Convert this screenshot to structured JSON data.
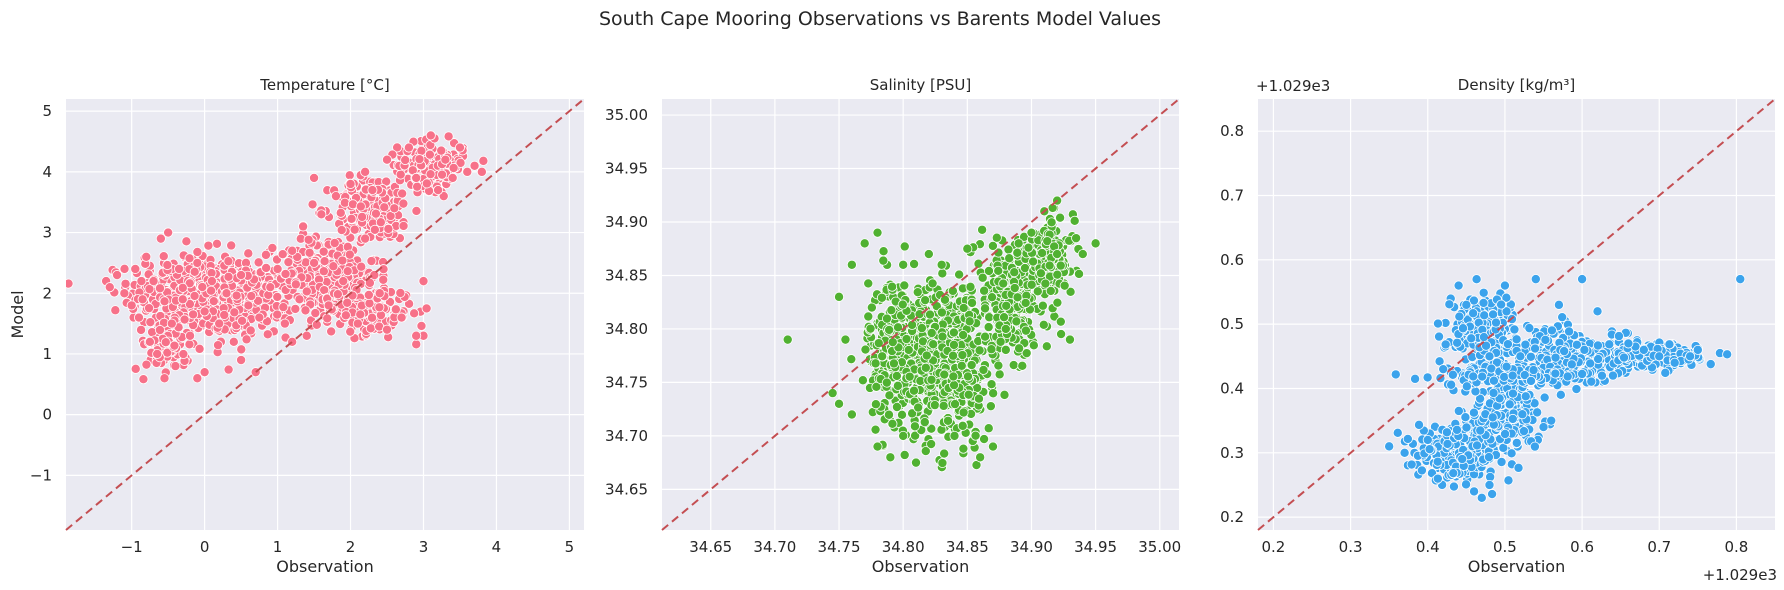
{
  "suptitle": "South Cape Mooring Observations vs Barents Model Values",
  "chart_data": [
    {
      "type": "scatter",
      "title": "Temperature [°C]",
      "xlabel": "Observation",
      "ylabel": "Model",
      "xlim": [
        -1.9,
        5.2
      ],
      "ylim": [
        -1.9,
        5.2
      ],
      "xticks": [
        "−1",
        "0",
        "1",
        "2",
        "3",
        "4",
        "5"
      ],
      "xtick_values": [
        -1,
        0,
        1,
        2,
        3,
        4,
        5
      ],
      "yticks": [
        "−1",
        "0",
        "1",
        "2",
        "3",
        "4",
        "5"
      ],
      "ytick_values": [
        -1,
        0,
        1,
        2,
        3,
        4,
        5
      ],
      "offset_x": "",
      "offset_y": "",
      "color": "#f77189",
      "identity_line": true,
      "points": [
        [
          -1.35,
          2.2
        ],
        [
          -1.3,
          2.1
        ],
        [
          -1.2,
          2.3
        ],
        [
          -1.1,
          2.0
        ],
        [
          -1.0,
          1.8
        ],
        [
          -0.95,
          2.4
        ],
        [
          -0.9,
          1.6
        ],
        [
          -0.85,
          1.9
        ],
        [
          -0.8,
          2.6
        ],
        [
          -0.75,
          1.2
        ],
        [
          -0.7,
          2.2
        ],
        [
          -0.65,
          1.0
        ],
        [
          -0.6,
          2.9
        ],
        [
          -0.55,
          0.6
        ],
        [
          -0.5,
          3.0
        ],
        [
          -0.45,
          1.5
        ],
        [
          -0.4,
          0.8
        ],
        [
          -0.35,
          2.4
        ],
        [
          -0.3,
          1.9
        ],
        [
          -0.2,
          1.3
        ],
        [
          -0.1,
          2.5
        ],
        [
          0.0,
          1.7
        ],
        [
          0.0,
          0.7
        ],
        [
          0.1,
          2.2
        ],
        [
          0.2,
          1.5
        ],
        [
          0.3,
          2.0
        ],
        [
          0.4,
          1.2
        ],
        [
          0.5,
          2.3
        ],
        [
          0.6,
          1.8
        ],
        [
          0.7,
          0.7
        ],
        [
          0.75,
          1.6
        ],
        [
          0.9,
          2.1
        ],
        [
          1.0,
          2.4
        ],
        [
          1.1,
          1.5
        ],
        [
          1.2,
          2.7
        ],
        [
          1.3,
          1.9
        ],
        [
          1.35,
          3.1
        ],
        [
          1.4,
          1.3
        ],
        [
          1.5,
          2.5
        ],
        [
          1.6,
          3.3
        ],
        [
          1.7,
          1.8
        ],
        [
          1.8,
          3.6
        ],
        [
          1.9,
          2.2
        ],
        [
          2.0,
          3.8
        ],
        [
          2.1,
          1.5
        ],
        [
          2.2,
          2.9
        ],
        [
          2.3,
          3.7
        ],
        [
          2.4,
          2.0
        ],
        [
          2.5,
          4.2
        ],
        [
          2.6,
          3.4
        ],
        [
          2.7,
          1.6
        ],
        [
          2.8,
          4.4
        ],
        [
          2.9,
          3.9
        ],
        [
          3.0,
          1.3
        ],
        [
          3.0,
          2.2
        ],
        [
          3.1,
          4.6
        ],
        [
          3.2,
          3.7
        ],
        [
          3.3,
          4.2
        ],
        [
          3.4,
          3.9
        ],
        [
          3.5,
          4.4
        ],
        [
          3.6,
          4.0
        ],
        [
          3.7,
          4.1
        ],
        [
          3.8,
          4.0
        ],
        [
          2.2,
          4.0
        ],
        [
          1.5,
          3.9
        ],
        [
          1.2,
          1.2
        ],
        [
          0.5,
          0.9
        ],
        [
          -0.1,
          0.6
        ],
        [
          2.5,
          1.4
        ],
        [
          2.9,
          1.3
        ]
      ],
      "clusters": [
        {
          "cx": -0.2,
          "cy": 2.0,
          "sx": 0.55,
          "sy": 0.45,
          "n": 420
        },
        {
          "cx": 0.5,
          "cy": 1.9,
          "sx": 0.45,
          "sy": 0.4,
          "n": 260
        },
        {
          "cx": 1.7,
          "cy": 2.3,
          "sx": 0.45,
          "sy": 0.45,
          "n": 280
        },
        {
          "cx": 2.3,
          "cy": 3.4,
          "sx": 0.35,
          "sy": 0.35,
          "n": 200
        },
        {
          "cx": 3.1,
          "cy": 4.1,
          "sx": 0.3,
          "sy": 0.25,
          "n": 180
        },
        {
          "cx": 2.2,
          "cy": 1.7,
          "sx": 0.45,
          "sy": 0.25,
          "n": 150
        },
        {
          "cx": -0.5,
          "cy": 1.1,
          "sx": 0.2,
          "sy": 0.25,
          "n": 80
        }
      ]
    },
    {
      "type": "scatter",
      "title": "Salinity [PSU]",
      "xlabel": "Observation",
      "ylabel": "",
      "xlim": [
        34.612,
        35.015
      ],
      "ylim": [
        34.612,
        35.015
      ],
      "xticks": [
        "34.65",
        "34.70",
        "34.75",
        "34.80",
        "34.85",
        "34.90",
        "34.95",
        "35.00"
      ],
      "xtick_values": [
        34.65,
        34.7,
        34.75,
        34.8,
        34.85,
        34.9,
        34.95,
        35.0
      ],
      "yticks": [
        "34.65",
        "34.70",
        "34.75",
        "34.80",
        "34.85",
        "34.90",
        "34.95",
        "35.00"
      ],
      "ytick_values": [
        34.65,
        34.7,
        34.75,
        34.8,
        34.85,
        34.9,
        34.95,
        35.0
      ],
      "offset_x": "",
      "offset_y": "",
      "color": "#50b131",
      "identity_line": true,
      "points": [
        [
          34.71,
          34.79
        ],
        [
          34.745,
          34.74
        ],
        [
          34.75,
          34.73
        ],
        [
          34.76,
          34.72
        ],
        [
          34.76,
          34.86
        ],
        [
          34.77,
          34.88
        ],
        [
          34.78,
          34.89
        ],
        [
          34.78,
          34.69
        ],
        [
          34.79,
          34.68
        ],
        [
          34.8,
          34.86
        ],
        [
          34.81,
          34.675
        ],
        [
          34.82,
          34.87
        ],
        [
          34.83,
          34.86
        ],
        [
          34.84,
          34.7
        ],
        [
          34.85,
          34.875
        ],
        [
          34.86,
          34.68
        ],
        [
          34.87,
          34.69
        ],
        [
          34.88,
          34.8
        ],
        [
          34.89,
          34.88
        ],
        [
          34.9,
          34.89
        ],
        [
          34.91,
          34.91
        ],
        [
          34.92,
          34.92
        ],
        [
          34.92,
          34.87
        ],
        [
          34.93,
          34.79
        ],
        [
          34.94,
          34.87
        ],
        [
          34.95,
          34.88
        ],
        [
          34.75,
          34.83
        ],
        [
          34.755,
          34.79
        ],
        [
          34.8,
          34.7
        ]
      ],
      "clusters": [
        {
          "cx": 34.8,
          "cy": 34.78,
          "sx": 0.018,
          "sy": 0.045,
          "n": 420
        },
        {
          "cx": 34.84,
          "cy": 34.77,
          "sx": 0.02,
          "sy": 0.05,
          "n": 380
        },
        {
          "cx": 34.885,
          "cy": 34.83,
          "sx": 0.02,
          "sy": 0.035,
          "n": 280
        },
        {
          "cx": 34.915,
          "cy": 34.865,
          "sx": 0.012,
          "sy": 0.025,
          "n": 150
        }
      ]
    },
    {
      "type": "scatter",
      "title": "Density [kg/m³]",
      "xlabel": "Observation",
      "ylabel": "",
      "xlim": [
        1029.18,
        1029.85
      ],
      "ylim": [
        1029.18,
        1029.85
      ],
      "xticks": [
        "0.2",
        "0.3",
        "0.4",
        "0.5",
        "0.6",
        "0.7",
        "0.8"
      ],
      "xtick_values": [
        1029.2,
        1029.3,
        1029.4,
        1029.5,
        1029.6,
        1029.7,
        1029.8
      ],
      "yticks": [
        "0.2",
        "0.3",
        "0.4",
        "0.5",
        "0.6",
        "0.7",
        "0.8"
      ],
      "ytick_values": [
        1029.2,
        1029.3,
        1029.4,
        1029.5,
        1029.6,
        1029.7,
        1029.8
      ],
      "offset_x": "+1.029e3",
      "offset_y": "+1.029e3",
      "color": "#3ba3ec",
      "identity_line": true,
      "points": [
        [
          1029.35,
          1029.31
        ],
        [
          1029.37,
          1029.3
        ],
        [
          1029.4,
          1029.32
        ],
        [
          1029.42,
          1029.43
        ],
        [
          1029.44,
          1029.56
        ],
        [
          1029.45,
          1029.53
        ],
        [
          1029.46,
          1029.24
        ],
        [
          1029.47,
          1029.23
        ],
        [
          1029.48,
          1029.25
        ],
        [
          1029.5,
          1029.56
        ],
        [
          1029.52,
          1029.45
        ],
        [
          1029.54,
          1029.57
        ],
        [
          1029.55,
          1029.34
        ],
        [
          1029.56,
          1029.35
        ],
        [
          1029.57,
          1029.53
        ],
        [
          1029.6,
          1029.57
        ],
        [
          1029.62,
          1029.52
        ],
        [
          1029.64,
          1029.42
        ],
        [
          1029.66,
          1029.47
        ],
        [
          1029.68,
          1029.46
        ],
        [
          1029.7,
          1029.45
        ],
        [
          1029.72,
          1029.44
        ],
        [
          1029.74,
          1029.45
        ],
        [
          1029.75,
          1029.46
        ],
        [
          1029.805,
          1029.57
        ],
        [
          1029.48,
          1029.45
        ],
        [
          1029.51,
          1029.42
        ]
      ],
      "clusters": [
        {
          "cx": 1029.44,
          "cy": 1029.3,
          "sx": 0.035,
          "sy": 0.025,
          "n": 300
        },
        {
          "cx": 1029.5,
          "cy": 1029.36,
          "sx": 0.03,
          "sy": 0.04,
          "n": 200
        },
        {
          "cx": 1029.47,
          "cy": 1029.49,
          "sx": 0.03,
          "sy": 0.04,
          "n": 220
        },
        {
          "cx": 1029.58,
          "cy": 1029.45,
          "sx": 0.05,
          "sy": 0.03,
          "n": 260
        },
        {
          "cx": 1029.69,
          "cy": 1029.45,
          "sx": 0.04,
          "sy": 0.012,
          "n": 220
        },
        {
          "cx": 1029.52,
          "cy": 1029.42,
          "sx": 0.07,
          "sy": 0.01,
          "n": 120
        }
      ]
    }
  ]
}
